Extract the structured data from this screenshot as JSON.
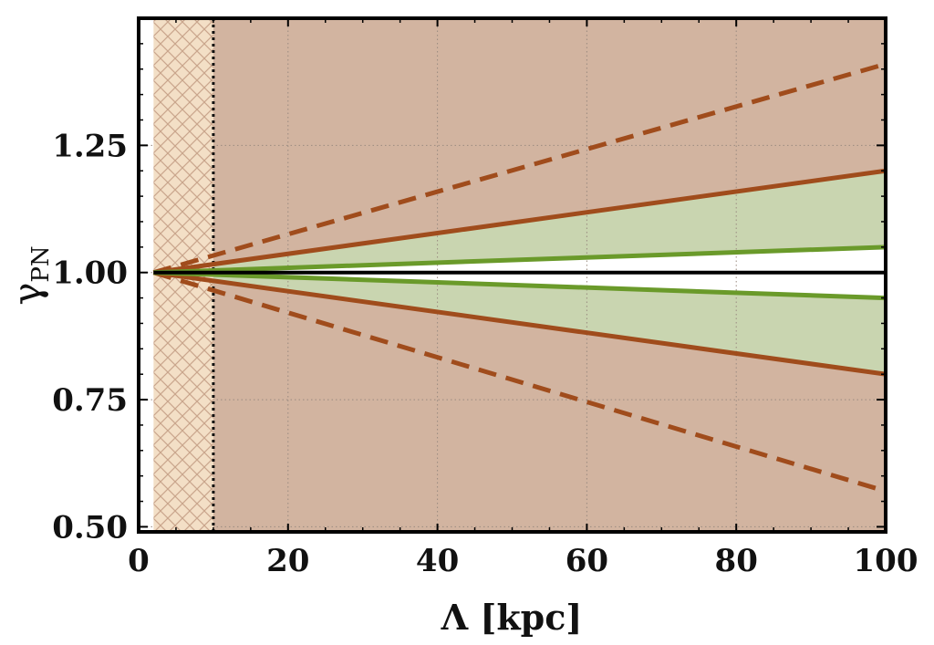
{
  "chart_data": {
    "type": "line",
    "xlabel": "Λ [kpc]",
    "ylabel": {
      "symbol": "γ",
      "subscript": "PN"
    },
    "xlim": [
      0,
      100
    ],
    "ylim": [
      0.49,
      1.5
    ],
    "x_ticks": [
      "0",
      "20",
      "40",
      "60",
      "80",
      "100"
    ],
    "y_ticks": [
      "0.50",
      "0.75",
      "1.00",
      "1.25"
    ],
    "grid": "dotted vertical and horizontal",
    "excluded_region": {
      "x": [
        2,
        10
      ],
      "style": "cross-hatched",
      "boundary_line": "dotted at x = 10"
    },
    "regions": [
      {
        "kind": "excluded-band",
        "fill": "#d2b4a0",
        "x": [
          2,
          100
        ],
        "y": [
          0.49,
          1.5
        ]
      },
      {
        "kind": "allowed-band",
        "fill": "#c9d5b0",
        "x": [
          2,
          100
        ],
        "upper": [
          1.0,
          1.2
        ],
        "lower": [
          1.0,
          0.8
        ]
      }
    ],
    "series": [
      {
        "style": "solid",
        "color": "#a04c1c",
        "x": [
          2,
          100
        ],
        "y": [
          1.0,
          1.2
        ]
      },
      {
        "style": "solid",
        "color": "#a04c1c",
        "x": [
          2,
          100
        ],
        "y": [
          1.0,
          0.8
        ]
      },
      {
        "style": "dashed",
        "color": "#a04c1c",
        "x": [
          2,
          100
        ],
        "y": [
          1.0,
          1.41
        ]
      },
      {
        "style": "dashed",
        "color": "#a04c1c",
        "x": [
          2,
          100
        ],
        "y": [
          1.0,
          0.57
        ]
      },
      {
        "style": "solid",
        "color": "#6a9a2a",
        "x": [
          2,
          100
        ],
        "y": [
          1.0,
          1.05
        ]
      },
      {
        "style": "solid",
        "color": "#6a9a2a",
        "x": [
          2,
          100
        ],
        "y": [
          1.0,
          0.95
        ]
      },
      {
        "style": "solid",
        "color": "#000000",
        "x": [
          2,
          100
        ],
        "y": [
          1.0,
          1.0
        ]
      }
    ]
  }
}
